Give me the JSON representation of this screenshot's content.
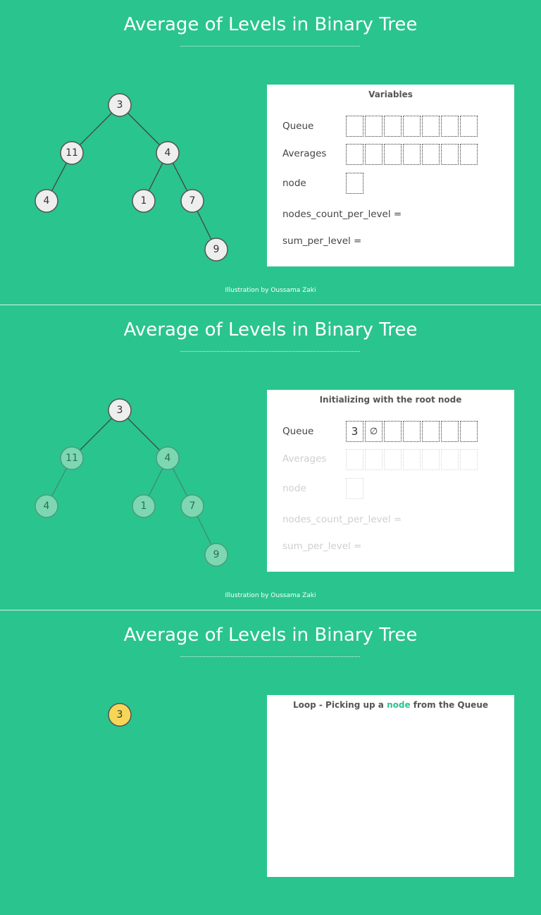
{
  "slides": [
    {
      "title": "Average of Levels in Binary Tree",
      "panel_title": "Variables",
      "labels": {
        "queue": "Queue",
        "averages": "Averages",
        "node": "node",
        "nodes_count": "nodes_count_per_level  =",
        "sum": "sum_per_level  ="
      },
      "queue_values": [
        "",
        "",
        "",
        "",
        "",
        "",
        ""
      ],
      "credit": "Illustration by Oussama Zaki"
    },
    {
      "title": "Average of Levels in Binary Tree",
      "panel_title": "Initializing with the root node",
      "labels": {
        "queue": "Queue",
        "averages": "Averages",
        "node": "node",
        "nodes_count": "nodes_count_per_level  =",
        "sum": "sum_per_level  ="
      },
      "queue_values": [
        "3",
        "∅",
        "",
        "",
        "",
        "",
        ""
      ],
      "credit": "Illustration by Oussama Zaki"
    },
    {
      "title": "Average of Levels in Binary Tree",
      "panel_title_parts": {
        "before": "Loop - Picking up a ",
        "highlight": "node",
        "after": " from the Queue"
      },
      "visible_node": "3"
    }
  ],
  "tree_values": [
    "3",
    "11",
    "4",
    "4",
    "1",
    "7",
    "9"
  ],
  "colors": {
    "background": "#2ac48f",
    "node_fill": "#eeeeee",
    "node_faded_fill": "#7dd8b2",
    "node_active_fill": "#f7d657",
    "highlight": "#2ac48f"
  }
}
